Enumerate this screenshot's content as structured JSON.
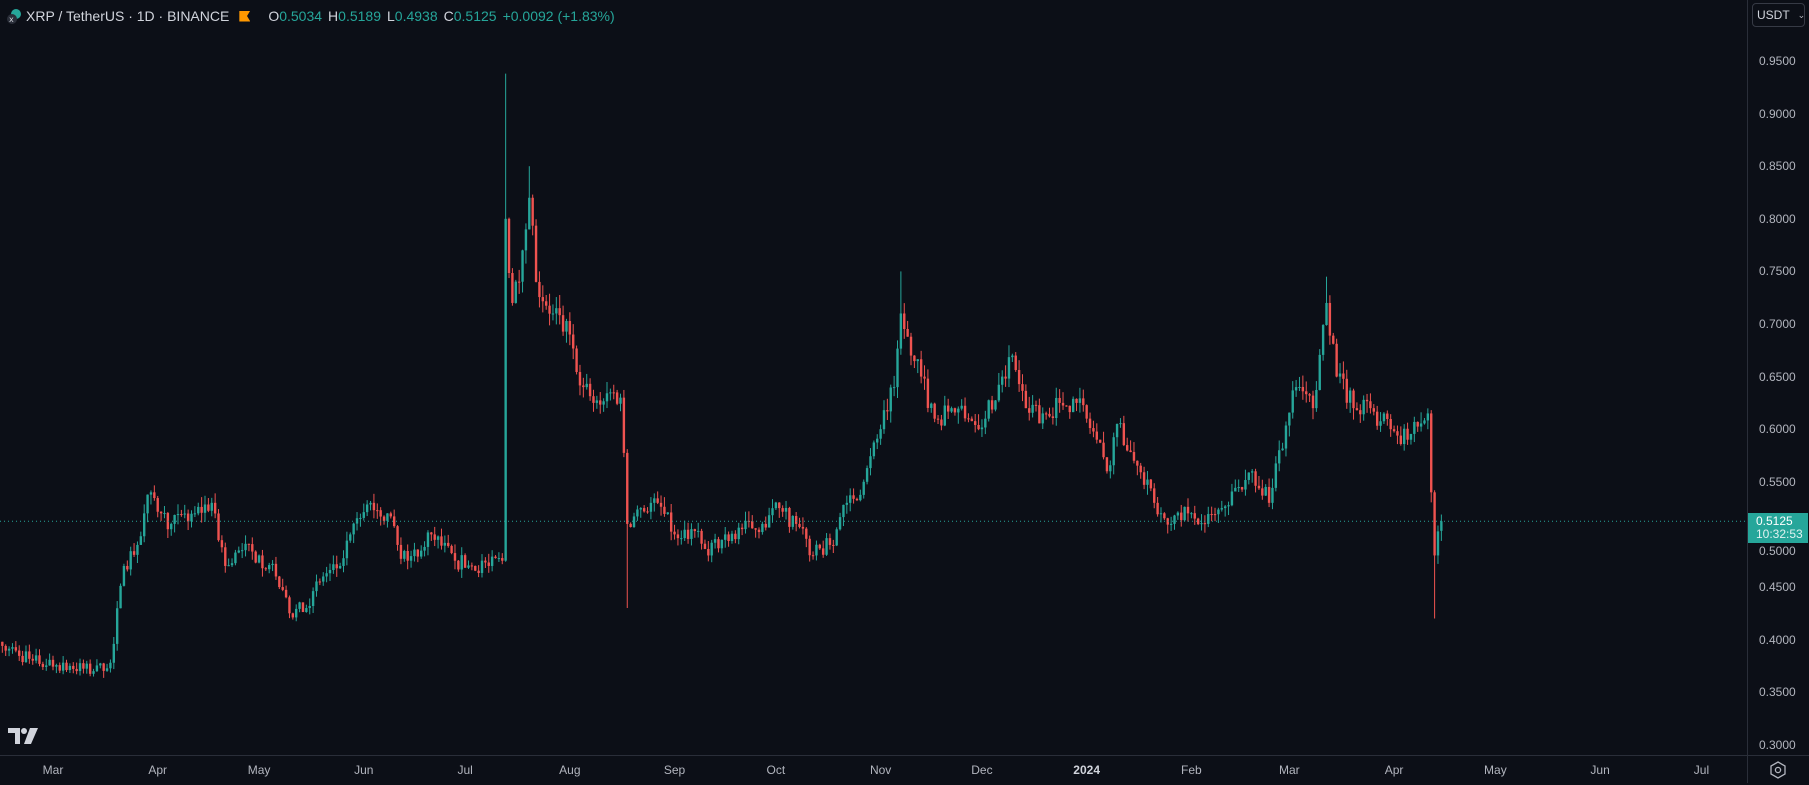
{
  "header": {
    "symbol_title": "XRP / TetherUS · 1D · BINANCE",
    "ohlc": [
      {
        "key": "O",
        "value": "0.5034"
      },
      {
        "key": "H",
        "value": "0.5189"
      },
      {
        "key": "L",
        "value": "0.4938"
      },
      {
        "key": "C",
        "value": "0.5125"
      }
    ],
    "change": "+0.0092 (+1.83%)"
  },
  "currency_selector": {
    "value": "USDT"
  },
  "last_price": {
    "value": "0.5125",
    "countdown": "10:32:53"
  },
  "colors": {
    "up": "#26a69a",
    "down": "#ef5350",
    "background": "#0c0f17",
    "text": "#b2b5be"
  },
  "chart_data": {
    "type": "candlestick",
    "title": "XRP / TetherUS · 1D · BINANCE",
    "start_date": "2023-02-14",
    "end_date": "2024-04-15",
    "ylim": [
      0.29,
      0.97
    ],
    "y_ticks": [
      "0.9500",
      "0.9000",
      "0.8500",
      "0.8000",
      "0.7500",
      "0.7000",
      "0.6500",
      "0.6000",
      "0.5500",
      "0.5000",
      "0.4500",
      "0.4000",
      "0.3500",
      "0.3000"
    ],
    "x_ticks": [
      "Mar",
      "Apr",
      "May",
      "Jun",
      "Jul",
      "Aug",
      "Sep",
      "Oct",
      "Nov",
      "Dec",
      "2024",
      "Feb",
      "Mar",
      "Apr",
      "May",
      "Jun",
      "Jul"
    ],
    "close_anchors_day_price": [
      [
        0,
        0.394
      ],
      [
        9,
        0.38
      ],
      [
        20,
        0.375
      ],
      [
        27,
        0.37
      ],
      [
        32,
        0.378
      ],
      [
        36,
        0.47
      ],
      [
        40,
        0.49
      ],
      [
        42,
        0.52
      ],
      [
        44,
        0.54
      ],
      [
        47,
        0.52
      ],
      [
        50,
        0.51
      ],
      [
        57,
        0.52
      ],
      [
        62,
        0.53
      ],
      [
        66,
        0.47
      ],
      [
        71,
        0.485
      ],
      [
        76,
        0.48
      ],
      [
        81,
        0.46
      ],
      [
        85,
        0.425
      ],
      [
        90,
        0.43
      ],
      [
        95,
        0.46
      ],
      [
        100,
        0.47
      ],
      [
        103,
        0.5
      ],
      [
        109,
        0.53
      ],
      [
        114,
        0.52
      ],
      [
        117,
        0.49
      ],
      [
        120,
        0.475
      ],
      [
        127,
        0.5
      ],
      [
        134,
        0.475
      ],
      [
        139,
        0.47
      ],
      [
        144,
        0.47
      ],
      [
        148,
        0.475
      ],
      [
        149,
        0.8
      ],
      [
        151,
        0.72
      ],
      [
        154,
        0.77
      ],
      [
        156,
        0.82
      ],
      [
        158,
        0.74
      ],
      [
        163,
        0.71
      ],
      [
        168,
        0.69
      ],
      [
        172,
        0.64
      ],
      [
        175,
        0.625
      ],
      [
        180,
        0.635
      ],
      [
        183,
        0.63
      ],
      [
        185,
        0.51
      ],
      [
        189,
        0.525
      ],
      [
        194,
        0.53
      ],
      [
        199,
        0.5
      ],
      [
        204,
        0.505
      ],
      [
        209,
        0.48
      ],
      [
        214,
        0.5
      ],
      [
        219,
        0.505
      ],
      [
        225,
        0.51
      ],
      [
        230,
        0.525
      ],
      [
        235,
        0.51
      ],
      [
        240,
        0.48
      ],
      [
        245,
        0.49
      ],
      [
        250,
        0.53
      ],
      [
        255,
        0.55
      ],
      [
        260,
        0.6
      ],
      [
        264,
        0.64
      ],
      [
        266,
        0.71
      ],
      [
        269,
        0.67
      ],
      [
        272,
        0.65
      ],
      [
        276,
        0.61
      ],
      [
        281,
        0.62
      ],
      [
        286,
        0.61
      ],
      [
        291,
        0.61
      ],
      [
        296,
        0.65
      ],
      [
        299,
        0.67
      ],
      [
        303,
        0.62
      ],
      [
        308,
        0.615
      ],
      [
        313,
        0.625
      ],
      [
        318,
        0.625
      ],
      [
        324,
        0.59
      ],
      [
        327,
        0.56
      ],
      [
        330,
        0.605
      ],
      [
        335,
        0.57
      ],
      [
        341,
        0.53
      ],
      [
        346,
        0.51
      ],
      [
        351,
        0.52
      ],
      [
        356,
        0.51
      ],
      [
        361,
        0.525
      ],
      [
        366,
        0.545
      ],
      [
        370,
        0.56
      ],
      [
        375,
        0.53
      ],
      [
        378,
        0.58
      ],
      [
        383,
        0.64
      ],
      [
        388,
        0.62
      ],
      [
        392,
        0.72
      ],
      [
        395,
        0.65
      ],
      [
        400,
        0.62
      ],
      [
        405,
        0.62
      ],
      [
        411,
        0.6
      ],
      [
        416,
        0.59
      ],
      [
        422,
        0.615
      ],
      [
        423,
        0.54
      ],
      [
        424,
        0.48
      ],
      [
        426,
        0.5125
      ]
    ],
    "extreme_wicks_day_price": [
      [
        149,
        "high",
        0.938
      ],
      [
        156,
        "high",
        0.85
      ],
      [
        185,
        "low",
        0.43
      ],
      [
        266,
        "high",
        0.75
      ],
      [
        392,
        "high",
        0.745
      ],
      [
        424,
        "low",
        0.42
      ]
    ],
    "last_candle": {
      "open": 0.5034,
      "high": 0.5189,
      "low": 0.4938,
      "close": 0.5125
    }
  }
}
